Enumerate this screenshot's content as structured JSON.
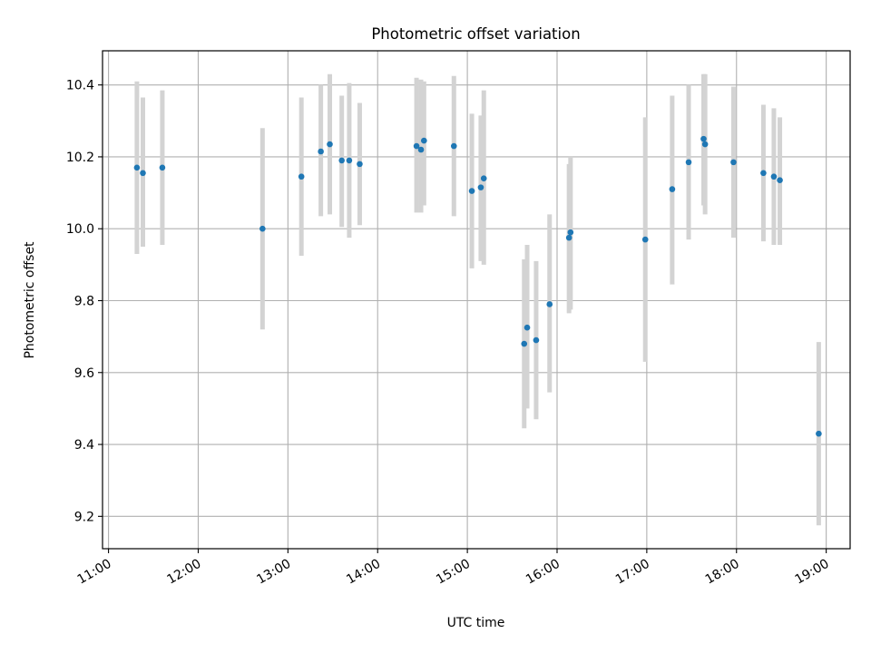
{
  "chart_data": {
    "type": "scatter",
    "title": "Photometric offset variation",
    "xlabel": "UTC time",
    "ylabel": "Photometric offset",
    "x_ticks": [
      "11:00",
      "12:00",
      "13:00",
      "14:00",
      "15:00",
      "16:00",
      "17:00",
      "18:00",
      "19:00"
    ],
    "y_ticks": [
      "9.2",
      "9.4",
      "9.6",
      "9.8",
      "10.0",
      "10.2",
      "10.4"
    ],
    "xlim": [
      "10:56",
      "19:16"
    ],
    "ylim": [
      9.11,
      10.495
    ],
    "grid": true,
    "colors": {
      "point": "#1f77b4",
      "errorbar": "#d3d3d3",
      "grid": "#b0b0b0"
    },
    "series": [
      {
        "points": [
          {
            "x": "11:19",
            "y": 10.17,
            "ylow": 9.93,
            "yhigh": 10.41
          },
          {
            "x": "11:23",
            "y": 10.155,
            "ylow": 9.95,
            "yhigh": 10.365
          },
          {
            "x": "11:36",
            "y": 10.17,
            "ylow": 9.955,
            "yhigh": 10.385
          },
          {
            "x": "12:43",
            "y": 10.0,
            "ylow": 9.72,
            "yhigh": 10.28
          },
          {
            "x": "13:09",
            "y": 10.145,
            "ylow": 9.925,
            "yhigh": 10.365
          },
          {
            "x": "13:22",
            "y": 10.215,
            "ylow": 10.035,
            "yhigh": 10.4
          },
          {
            "x": "13:28",
            "y": 10.235,
            "ylow": 10.04,
            "yhigh": 10.43
          },
          {
            "x": "13:36",
            "y": 10.19,
            "ylow": 10.005,
            "yhigh": 10.37
          },
          {
            "x": "13:41",
            "y": 10.19,
            "ylow": 9.975,
            "yhigh": 10.405
          },
          {
            "x": "13:48",
            "y": 10.18,
            "ylow": 10.01,
            "yhigh": 10.35
          },
          {
            "x": "14:26",
            "y": 10.23,
            "ylow": 10.045,
            "yhigh": 10.42
          },
          {
            "x": "14:29",
            "y": 10.22,
            "ylow": 10.045,
            "yhigh": 10.415
          },
          {
            "x": "14:31",
            "y": 10.245,
            "ylow": 10.065,
            "yhigh": 10.41
          },
          {
            "x": "14:51",
            "y": 10.23,
            "ylow": 10.035,
            "yhigh": 10.425
          },
          {
            "x": "15:03",
            "y": 10.105,
            "ylow": 9.89,
            "yhigh": 10.32
          },
          {
            "x": "15:09",
            "y": 10.115,
            "ylow": 9.91,
            "yhigh": 10.315
          },
          {
            "x": "15:11",
            "y": 10.14,
            "ylow": 9.9,
            "yhigh": 10.385
          },
          {
            "x": "15:38",
            "y": 9.68,
            "ylow": 9.445,
            "yhigh": 9.915
          },
          {
            "x": "15:40",
            "y": 9.725,
            "ylow": 9.5,
            "yhigh": 9.955
          },
          {
            "x": "15:46",
            "y": 9.69,
            "ylow": 9.47,
            "yhigh": 9.91
          },
          {
            "x": "15:55",
            "y": 9.79,
            "ylow": 9.545,
            "yhigh": 10.04
          },
          {
            "x": "16:08",
            "y": 9.975,
            "ylow": 9.765,
            "yhigh": 10.18
          },
          {
            "x": "16:09",
            "y": 9.99,
            "ylow": 9.775,
            "yhigh": 10.2
          },
          {
            "x": "16:59",
            "y": 9.97,
            "ylow": 9.63,
            "yhigh": 10.31
          },
          {
            "x": "17:17",
            "y": 10.11,
            "ylow": 9.845,
            "yhigh": 10.37
          },
          {
            "x": "17:28",
            "y": 10.185,
            "ylow": 9.97,
            "yhigh": 10.4
          },
          {
            "x": "17:38",
            "y": 10.25,
            "ylow": 10.065,
            "yhigh": 10.43
          },
          {
            "x": "17:39",
            "y": 10.235,
            "ylow": 10.04,
            "yhigh": 10.43
          },
          {
            "x": "17:58",
            "y": 10.185,
            "ylow": 9.975,
            "yhigh": 10.395
          },
          {
            "x": "18:18",
            "y": 10.155,
            "ylow": 9.965,
            "yhigh": 10.345
          },
          {
            "x": "18:25",
            "y": 10.145,
            "ylow": 9.955,
            "yhigh": 10.335
          },
          {
            "x": "18:29",
            "y": 10.135,
            "ylow": 9.955,
            "yhigh": 10.31
          },
          {
            "x": "18:55",
            "y": 9.43,
            "ylow": 9.175,
            "yhigh": 9.685
          }
        ]
      }
    ]
  }
}
